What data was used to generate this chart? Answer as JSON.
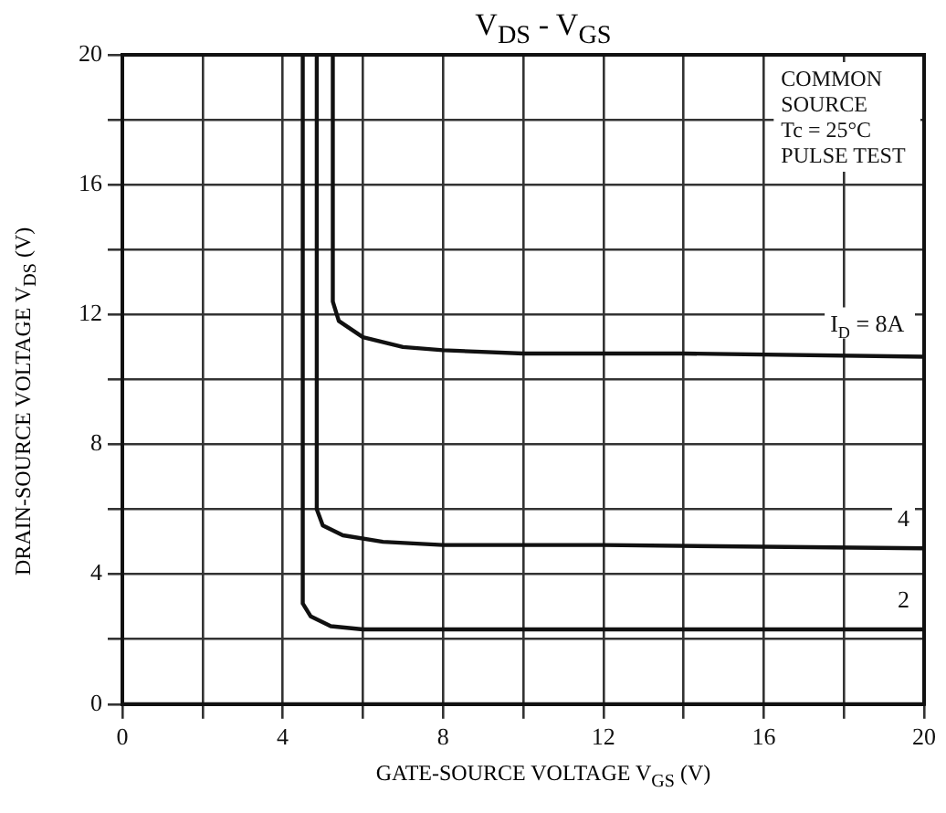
{
  "chart_data": {
    "type": "line",
    "title": "V$_{DS}$ - V$_{GS}$",
    "xlabel": "GATE-SOURCE VOLTAGE  V$_{GS}$  (V)",
    "ylabel": "DRAIN-SOURCE VOLTAGE  V$_{DS}$  (V)",
    "annotations": [
      "COMMON",
      "SOURCE",
      "Tc = 25°C",
      "PULSE TEST"
    ],
    "xlim": [
      0,
      20
    ],
    "xticks": [
      0,
      {
        "value": 2,
        "label": null
      },
      4,
      {
        "value": 6,
        "label": null
      },
      8,
      {
        "value": 10,
        "label": null
      },
      12,
      {
        "value": 14,
        "label": null
      },
      16,
      {
        "value": 18,
        "label": null
      },
      20
    ],
    "ylim": [
      0,
      20
    ],
    "yticks": [
      0,
      {
        "value": 2,
        "label": null
      },
      4,
      {
        "value": 6,
        "label": null
      },
      8,
      {
        "value": 10,
        "label": null
      },
      12,
      {
        "value": 14,
        "label": null
      },
      16,
      {
        "value": 18,
        "label": null
      },
      20
    ],
    "grid": true,
    "legend": false,
    "marker": "none",
    "line_style": "solid",
    "series": [
      {
        "name": "I$_{D}$ = 8A",
        "color": "#111111",
        "x": [
          5.25,
          5.25,
          5.4,
          6,
          7,
          8,
          10,
          14,
          20
        ],
        "values": [
          20,
          12.4,
          11.8,
          11.3,
          11.0,
          10.9,
          10.8,
          10.8,
          10.7
        ]
      },
      {
        "name": "4",
        "color": "#111111",
        "x": [
          4.85,
          4.85,
          5.0,
          5.5,
          6.5,
          8,
          12,
          20
        ],
        "values": [
          20,
          6.0,
          5.5,
          5.2,
          5.0,
          4.9,
          4.9,
          4.8
        ]
      },
      {
        "name": "2",
        "color": "#111111",
        "x": [
          4.5,
          4.5,
          4.7,
          5.2,
          6,
          20
        ],
        "values": [
          20,
          3.1,
          2.7,
          2.4,
          2.3,
          2.3
        ]
      }
    ]
  }
}
